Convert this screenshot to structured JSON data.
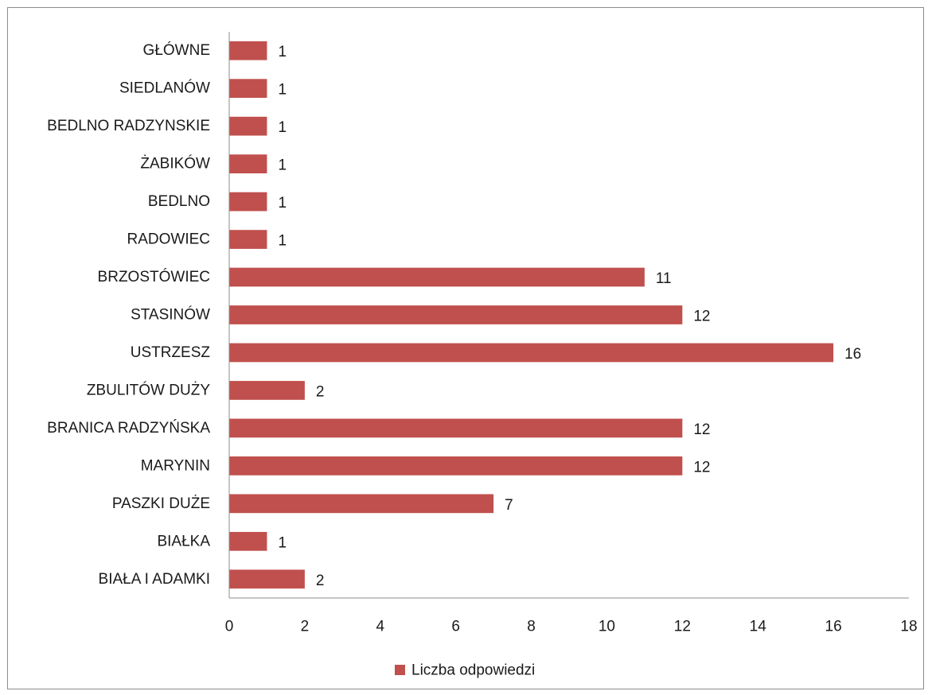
{
  "chart_data": {
    "type": "bar",
    "orientation": "horizontal",
    "categories": [
      "GŁÓWNE",
      "SIEDLANÓW",
      "BEDLNO RADZYNSKIE",
      "ŻABIKÓW",
      "BEDLNO",
      "RADOWIEC",
      "BRZOSTÓWIEC",
      "STASINÓW",
      "USTRZESZ",
      "ZBULITÓW DUŻY",
      "BRANICA RADZYŃSKA",
      "MARYNIN",
      "PASZKI DUŻE",
      "BIAŁKA",
      "BIAŁA I ADAMKI"
    ],
    "series": [
      {
        "name": "Liczba odpowiedzi",
        "values": [
          1,
          1,
          1,
          1,
          1,
          1,
          11,
          12,
          16,
          2,
          12,
          12,
          7,
          1,
          2
        ],
        "color": "#c0504d"
      }
    ],
    "xlim": [
      0,
      18
    ],
    "xticks": [
      0,
      2,
      4,
      6,
      8,
      10,
      12,
      14,
      16,
      18
    ],
    "grid": false,
    "legend": "bottom",
    "data_labels": true
  }
}
